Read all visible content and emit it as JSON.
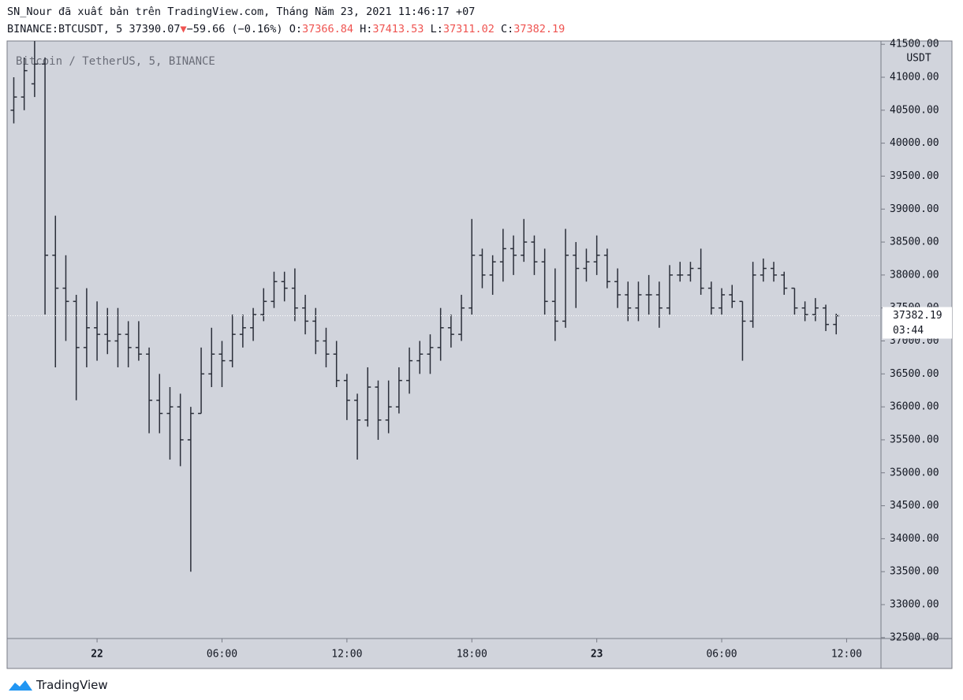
{
  "header": {
    "line1": "SN_Nour đã xuất bản trên TradingView.com, Tháng Năm 23, 2021 11:46:17 +07",
    "symbol": "BINANCE:BTCUSDT, 5",
    "price": "37390.07",
    "change": "−59.66 (−0.16%)",
    "o_label": "O:",
    "o": "37366.84",
    "h_label": "H:",
    "h": "37413.53",
    "l_label": "L:",
    "l": "37311.02",
    "c_label": "C:",
    "c": "37382.19"
  },
  "chart_data": {
    "type": "ohlc",
    "legend": "Bitcoin / TetherUS, 5, BINANCE",
    "y_unit": "USDT",
    "color": "#2a2e39",
    "background": "#d1d4dc",
    "grid": false,
    "last_price": 37382.19,
    "countdown": "03:44",
    "xlim": [
      "2021-05-21T19:43",
      "2021-05-23T13:39"
    ],
    "xticks": [
      {
        "value": "2021-05-22T00:00",
        "label": "22"
      },
      {
        "value": "2021-05-22T06:00",
        "label": "06:00"
      },
      {
        "value": "2021-05-22T12:00",
        "label": "12:00"
      },
      {
        "value": "2021-05-22T18:00",
        "label": "18:00"
      },
      {
        "value": "2021-05-23T00:00",
        "label": "23"
      },
      {
        "value": "2021-05-23T06:00",
        "label": "06:00"
      },
      {
        "value": "2021-05-23T12:00",
        "label": "12:00"
      }
    ],
    "ylim": [
      32486,
      41550
    ],
    "yticks": [
      {
        "value": 32500,
        "label": "32500.00"
      },
      {
        "value": 33000,
        "label": "33000.00"
      },
      {
        "value": 33500,
        "label": "33500.00"
      },
      {
        "value": 34000,
        "label": "34000.00"
      },
      {
        "value": 34500,
        "label": "34500.00"
      },
      {
        "value": 35000,
        "label": "35000.00"
      },
      {
        "value": 35500,
        "label": "35500.00"
      },
      {
        "value": 36000,
        "label": "36000.00"
      },
      {
        "value": 36500,
        "label": "36500.00"
      },
      {
        "value": 37000,
        "label": "37000.00"
      },
      {
        "value": 37500,
        "label": "37500.00"
      },
      {
        "value": 38000,
        "label": "38000.00"
      },
      {
        "value": 38500,
        "label": "38500.00"
      },
      {
        "value": 39000,
        "label": "39000.00"
      },
      {
        "value": 39500,
        "label": "39500.00"
      },
      {
        "value": 40000,
        "label": "40000.00"
      },
      {
        "value": 40500,
        "label": "40500.00"
      },
      {
        "value": 41000,
        "label": "41000.00"
      },
      {
        "value": 41500,
        "label": "41500.00"
      }
    ],
    "x": [
      "2021-05-21T20:00",
      "2021-05-21T20:30",
      "2021-05-21T21:00",
      "2021-05-21T21:30",
      "2021-05-21T22:00",
      "2021-05-21T22:30",
      "2021-05-21T23:00",
      "2021-05-21T23:30",
      "2021-05-22T00:00",
      "2021-05-22T00:30",
      "2021-05-22T01:00",
      "2021-05-22T01:30",
      "2021-05-22T02:00",
      "2021-05-22T02:30",
      "2021-05-22T03:00",
      "2021-05-22T03:30",
      "2021-05-22T04:00",
      "2021-05-22T04:30",
      "2021-05-22T05:00",
      "2021-05-22T05:30",
      "2021-05-22T06:00",
      "2021-05-22T06:30",
      "2021-05-22T07:00",
      "2021-05-22T07:30",
      "2021-05-22T08:00",
      "2021-05-22T08:30",
      "2021-05-22T09:00",
      "2021-05-22T09:30",
      "2021-05-22T10:00",
      "2021-05-22T10:30",
      "2021-05-22T11:00",
      "2021-05-22T11:30",
      "2021-05-22T12:00",
      "2021-05-22T12:30",
      "2021-05-22T13:00",
      "2021-05-22T13:30",
      "2021-05-22T14:00",
      "2021-05-22T14:30",
      "2021-05-22T15:00",
      "2021-05-22T15:30",
      "2021-05-22T16:00",
      "2021-05-22T16:30",
      "2021-05-22T17:00",
      "2021-05-22T17:30",
      "2021-05-22T18:00",
      "2021-05-22T18:30",
      "2021-05-22T19:00",
      "2021-05-22T19:30",
      "2021-05-22T20:00",
      "2021-05-22T20:30",
      "2021-05-22T21:00",
      "2021-05-22T21:30",
      "2021-05-22T22:00",
      "2021-05-22T22:30",
      "2021-05-22T23:00",
      "2021-05-22T23:30",
      "2021-05-23T00:00",
      "2021-05-23T00:30",
      "2021-05-23T01:00",
      "2021-05-23T01:30",
      "2021-05-23T02:00",
      "2021-05-23T02:30",
      "2021-05-23T03:00",
      "2021-05-23T03:30",
      "2021-05-23T04:00",
      "2021-05-23T04:30",
      "2021-05-23T05:00",
      "2021-05-23T05:30",
      "2021-05-23T06:00",
      "2021-05-23T06:30",
      "2021-05-23T07:00",
      "2021-05-23T07:30",
      "2021-05-23T08:00",
      "2021-05-23T08:30",
      "2021-05-23T09:00",
      "2021-05-23T09:30",
      "2021-05-23T10:00",
      "2021-05-23T10:30",
      "2021-05-23T11:00",
      "2021-05-23T11:30"
    ],
    "ohlc": [
      [
        40500,
        41000,
        40300,
        40700
      ],
      [
        40700,
        41300,
        40500,
        41100
      ],
      [
        40900,
        41550,
        40700,
        41200
      ],
      [
        41200,
        41300,
        37400,
        38300
      ],
      [
        38300,
        38900,
        36600,
        37800
      ],
      [
        37800,
        38300,
        37000,
        37600
      ],
      [
        37600,
        37700,
        36100,
        36900
      ],
      [
        36900,
        37800,
        36600,
        37200
      ],
      [
        37200,
        37600,
        36700,
        37100
      ],
      [
        37100,
        37500,
        36800,
        37000
      ],
      [
        37000,
        37500,
        36600,
        37100
      ],
      [
        37100,
        37300,
        36600,
        36900
      ],
      [
        36900,
        37300,
        36700,
        36800
      ],
      [
        36800,
        36900,
        35600,
        36100
      ],
      [
        36100,
        36500,
        35600,
        35900
      ],
      [
        35900,
        36300,
        35200,
        36000
      ],
      [
        36000,
        36200,
        35100,
        35500
      ],
      [
        35500,
        36000,
        33500,
        35900
      ],
      [
        35900,
        36900,
        35900,
        36500
      ],
      [
        36500,
        37200,
        36300,
        36800
      ],
      [
        36800,
        37000,
        36300,
        36700
      ],
      [
        36700,
        37400,
        36600,
        37100
      ],
      [
        37100,
        37400,
        36900,
        37200
      ],
      [
        37200,
        37500,
        37000,
        37400
      ],
      [
        37400,
        37800,
        37300,
        37600
      ],
      [
        37600,
        38050,
        37500,
        37900
      ],
      [
        37900,
        38050,
        37600,
        37800
      ],
      [
        37800,
        38100,
        37300,
        37500
      ],
      [
        37500,
        37700,
        37100,
        37300
      ],
      [
        37300,
        37500,
        36800,
        37000
      ],
      [
        37000,
        37200,
        36600,
        36800
      ],
      [
        36800,
        37000,
        36300,
        36400
      ],
      [
        36400,
        36500,
        35800,
        36100
      ],
      [
        36100,
        36200,
        35200,
        35800
      ],
      [
        35800,
        36600,
        35700,
        36300
      ],
      [
        36300,
        36400,
        35500,
        35800
      ],
      [
        35800,
        36400,
        35600,
        36000
      ],
      [
        36000,
        36600,
        35900,
        36400
      ],
      [
        36400,
        36900,
        36200,
        36700
      ],
      [
        36700,
        37000,
        36500,
        36800
      ],
      [
        36800,
        37100,
        36500,
        36900
      ],
      [
        36900,
        37500,
        36700,
        37200
      ],
      [
        37200,
        37400,
        36900,
        37100
      ],
      [
        37100,
        37700,
        37000,
        37500
      ],
      [
        37500,
        38850,
        37400,
        38300
      ],
      [
        38300,
        38400,
        37800,
        38000
      ],
      [
        38000,
        38300,
        37700,
        38200
      ],
      [
        38200,
        38700,
        37900,
        38400
      ],
      [
        38400,
        38600,
        38000,
        38300
      ],
      [
        38300,
        38850,
        38200,
        38500
      ],
      [
        38500,
        38600,
        38000,
        38200
      ],
      [
        38200,
        38400,
        37400,
        37600
      ],
      [
        37600,
        38100,
        37000,
        37300
      ],
      [
        37300,
        38700,
        37200,
        38300
      ],
      [
        38300,
        38500,
        37500,
        38100
      ],
      [
        38100,
        38400,
        37900,
        38200
      ],
      [
        38200,
        38600,
        38000,
        38300
      ],
      [
        38300,
        38400,
        37800,
        37900
      ],
      [
        37900,
        38100,
        37500,
        37700
      ],
      [
        37700,
        37900,
        37300,
        37500
      ],
      [
        37500,
        37900,
        37300,
        37700
      ],
      [
        37700,
        38000,
        37400,
        37700
      ],
      [
        37700,
        37900,
        37200,
        37500
      ],
      [
        37500,
        38150,
        37400,
        38000
      ],
      [
        38000,
        38200,
        37900,
        38000
      ],
      [
        38000,
        38200,
        37900,
        38100
      ],
      [
        38100,
        38400,
        37700,
        37800
      ],
      [
        37800,
        37900,
        37400,
        37500
      ],
      [
        37500,
        37800,
        37400,
        37700
      ],
      [
        37700,
        37850,
        37500,
        37600
      ],
      [
        37600,
        37600,
        36700,
        37300
      ],
      [
        37300,
        38200,
        37200,
        38000
      ],
      [
        38000,
        38250,
        37900,
        38100
      ],
      [
        38100,
        38200,
        37900,
        38000
      ],
      [
        38000,
        38050,
        37700,
        37800
      ],
      [
        37800,
        37800,
        37400,
        37500
      ],
      [
        37500,
        37600,
        37300,
        37400
      ],
      [
        37400,
        37650,
        37300,
        37500
      ],
      [
        37500,
        37550,
        37150,
        37250
      ],
      [
        37250,
        37413.53,
        37100,
        37382.19
      ]
    ]
  },
  "footer": {
    "brand": "TradingView"
  }
}
